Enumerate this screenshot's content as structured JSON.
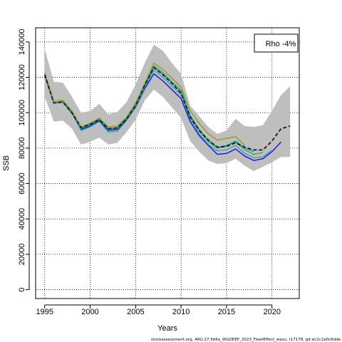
{
  "chart_data": {
    "type": "line",
    "xlabel": "Years",
    "ylabel": "SSB",
    "xlim": [
      1994,
      2023
    ],
    "ylim": [
      -5000,
      148000
    ],
    "xticks": [
      1995,
      2000,
      2005,
      2010,
      2015,
      2020
    ],
    "yticks": [
      0,
      20000,
      40000,
      60000,
      80000,
      100000,
      120000,
      140000
    ],
    "grid": "dotted",
    "legend_box": {
      "text": "Rho -4%",
      "placement": "top-right"
    },
    "source_note": "stockassessment.org, ARU.27.5b6a_WGDEEP_2023_FleetEffect_wasu, r17178, git:ec2c2a0c6dde",
    "confidence_band": {
      "color": "#bebebe",
      "x": [
        1995,
        1996,
        1997,
        1998,
        1999,
        2000,
        2001,
        2002,
        2003,
        2004,
        2005,
        2006,
        2007,
        2008,
        2009,
        2010,
        2011,
        2012,
        2013,
        2014,
        2015,
        2016,
        2017,
        2018,
        2019,
        2020,
        2021,
        2022
      ],
      "upper": [
        136000,
        117500,
        117000,
        109000,
        100000,
        101000,
        105000,
        99000,
        100500,
        106000,
        116000,
        128000,
        138500,
        135000,
        128000,
        122000,
        104000,
        98000,
        92000,
        88000,
        90000,
        96500,
        92500,
        92000,
        93000,
        101000,
        110000,
        115000
      ],
      "lower": [
        109000,
        95000,
        95500,
        91000,
        82000,
        83500,
        86000,
        82000,
        83000,
        89000,
        96000,
        107000,
        113000,
        109000,
        103000,
        97000,
        84000,
        78000,
        73000,
        71000,
        71500,
        74000,
        70000,
        67000,
        69500,
        72000,
        75000,
        75000
      ]
    },
    "series": [
      {
        "color": "#1414dc",
        "width": 1.4,
        "dash": false,
        "x": [
          1995,
          1996,
          1997,
          1998,
          1999,
          2000,
          2001,
          2002,
          2003,
          2004,
          2005,
          2006,
          2007,
          2008,
          2009,
          2010,
          2011,
          2012,
          2013,
          2014,
          2015,
          2016,
          2017,
          2018,
          2019,
          2020,
          2021
        ],
        "values": [
          121000,
          105500,
          106000,
          99500,
          90500,
          92500,
          95500,
          90000,
          90500,
          96000,
          103000,
          113500,
          122000,
          118000,
          113000,
          108000,
          95000,
          87000,
          81500,
          76500,
          77000,
          79500,
          75500,
          73000,
          74000,
          78000,
          83500
        ]
      },
      {
        "color": "#17a2b8",
        "width": 1.1,
        "dash": false,
        "x": [
          1995,
          1996,
          1997,
          1998,
          1999,
          2000,
          2001,
          2002,
          2003,
          2004,
          2005,
          2006,
          2007,
          2008,
          2009,
          2010,
          2011,
          2012,
          2013,
          2014,
          2015,
          2016,
          2017,
          2018,
          2019,
          2020
        ],
        "values": [
          121500,
          105500,
          106000,
          99500,
          90000,
          92000,
          95000,
          89000,
          89500,
          95500,
          103000,
          114000,
          124000,
          120000,
          115000,
          110000,
          96500,
          88000,
          82000,
          78500,
          79000,
          81500,
          77000,
          74500,
          75000,
          79000
        ]
      },
      {
        "color": "#2ca05a",
        "width": 1.1,
        "dash": false,
        "x": [
          1995,
          1996,
          1997,
          1998,
          1999,
          2000,
          2001,
          2002,
          2003,
          2004,
          2005,
          2006,
          2007,
          2008,
          2009,
          2010,
          2011,
          2012,
          2013,
          2014,
          2015,
          2016,
          2017,
          2018,
          2019
        ],
        "values": [
          121500,
          105500,
          106500,
          100000,
          91000,
          93000,
          96000,
          90500,
          91000,
          96500,
          104000,
          115000,
          125500,
          121500,
          116500,
          111500,
          98000,
          89500,
          83500,
          80000,
          81000,
          83500,
          79000,
          76500,
          77500
        ]
      },
      {
        "color": "#009090",
        "width": 1.1,
        "dash": false,
        "x": [
          1995,
          1996,
          1997,
          1998,
          1999,
          2000,
          2001,
          2002,
          2003,
          2004,
          2005,
          2006,
          2007,
          2008,
          2009,
          2010,
          2011,
          2012,
          2013,
          2014,
          2015,
          2016,
          2017,
          2018
        ],
        "values": [
          121500,
          105500,
          106500,
          100000,
          91500,
          93500,
          96500,
          91000,
          91500,
          97000,
          104500,
          115500,
          126500,
          122500,
          117500,
          112500,
          98500,
          90500,
          84500,
          80500,
          81500,
          84000,
          80000,
          78000
        ]
      },
      {
        "color": "#9a9a2a",
        "width": 1.5,
        "dash": false,
        "x": [
          1995,
          1996,
          1997,
          1998,
          1999,
          2000,
          2001,
          2002,
          2003,
          2004,
          2005,
          2006,
          2007,
          2008,
          2009,
          2010,
          2011,
          2012,
          2013,
          2014,
          2015,
          2016,
          2017
        ],
        "values": [
          122500,
          106500,
          107000,
          101000,
          92000,
          94000,
          97000,
          92000,
          92500,
          97500,
          105500,
          116500,
          128000,
          124500,
          119500,
          114500,
          101000,
          94000,
          88000,
          84500,
          85500,
          86500,
          81500
        ]
      },
      {
        "color": "#1a1a1a",
        "width": 1.8,
        "dash": true,
        "x": [
          1995,
          1996,
          1997,
          1998,
          1999,
          2000,
          2001,
          2002,
          2003,
          2004,
          2005,
          2006,
          2007,
          2008,
          2009,
          2010,
          2011,
          2012,
          2013,
          2014,
          2015,
          2016,
          2017,
          2018,
          2019,
          2020,
          2021,
          2022
        ],
        "values": [
          121500,
          105500,
          106000,
          100000,
          91500,
          93500,
          96000,
          91000,
          91500,
          96500,
          104000,
          115500,
          125500,
          121500,
          116500,
          111000,
          97500,
          90000,
          84500,
          80500,
          81000,
          83000,
          80500,
          79000,
          79000,
          84000,
          91000,
          92500
        ]
      }
    ]
  }
}
